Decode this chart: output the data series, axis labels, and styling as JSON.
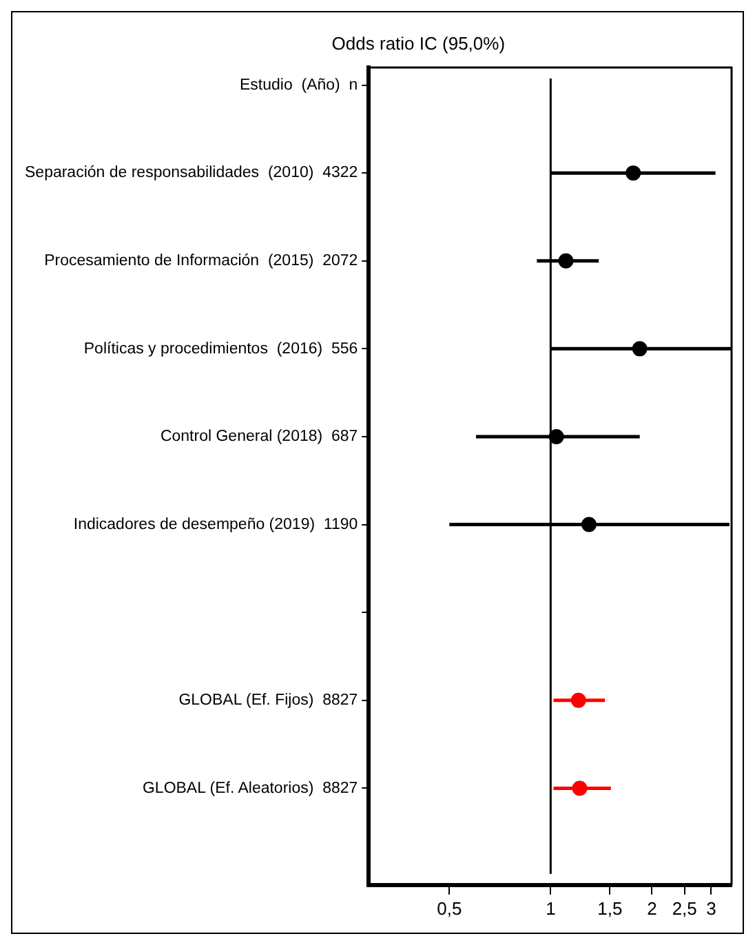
{
  "chart_data": {
    "type": "scatter",
    "orientation": "horizontal",
    "title": "Odds ratio IC (95,0%)",
    "categories": [
      "Estudio  (Año)  n",
      "Separación de responsabilidades  (2010)  4322",
      "Procesamiento de Información  (2015)  2072",
      "Políticas y procedimientos  (2016)  556",
      "Control General (2018)  687",
      "Indicadores de desempeño (2019)  1190",
      null,
      "GLOBAL (Ef. Fijos)  8827",
      "GLOBAL (Ef. Aleatorios)  8827"
    ],
    "series": [
      {
        "color": "#000000",
        "values": [
          null,
          1.76,
          1.11,
          1.84,
          1.04,
          1.3,
          null,
          null,
          null
        ],
        "errors": [
          null,
          [
            1.0,
            3.09
          ],
          [
            0.91,
            1.39
          ],
          [
            1.0,
            3.45
          ],
          [
            0.6,
            1.84
          ],
          [
            0.5,
            3.4
          ],
          null,
          null,
          null
        ]
      },
      {
        "color": "#ff0000",
        "values": [
          null,
          null,
          null,
          null,
          null,
          null,
          null,
          1.21,
          1.22
        ],
        "errors": [
          null,
          null,
          null,
          null,
          null,
          null,
          null,
          [
            1.02,
            1.45
          ],
          [
            1.02,
            1.51
          ]
        ]
      }
    ],
    "log": "x",
    "xlim": [
      0.288,
      3.45
    ],
    "xticks": [
      {
        "value": 0.5,
        "label": "0,5"
      },
      1,
      {
        "value": 1.5,
        "label": "1,5"
      },
      2,
      {
        "value": 2.5,
        "label": "2,5"
      },
      3
    ],
    "ref_lines": [
      {
        "axis": "x",
        "value": 1,
        "color": "#000000"
      }
    ],
    "marker": "circle",
    "grid": false,
    "legend": false
  }
}
